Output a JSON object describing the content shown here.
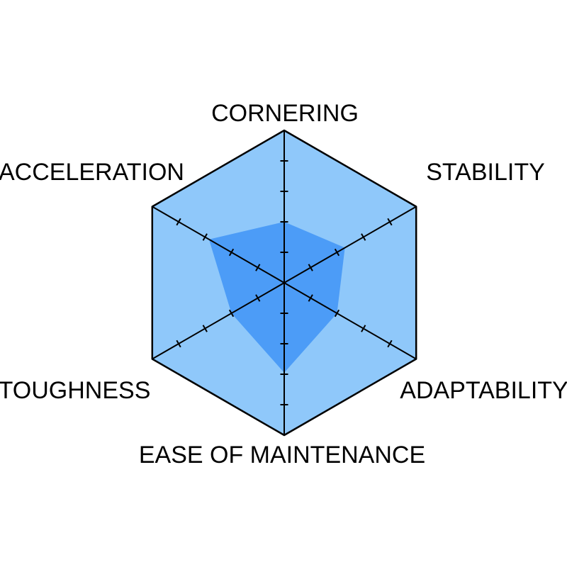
{
  "chart_data": {
    "type": "radar",
    "title": "",
    "axes": [
      {
        "label": "CORNERING",
        "value": 2.0
      },
      {
        "label": "STABILITY",
        "value": 2.3
      },
      {
        "label": "ADAPTABILITY",
        "value": 2.0
      },
      {
        "label": "EASE OF MAINTENANCE",
        "value": 2.95
      },
      {
        "label": "TOUGHNESS",
        "value": 2.0
      },
      {
        "label": "ACCELERATION",
        "value": 2.85
      }
    ],
    "scale_max": 5,
    "tick_step": 1,
    "grid": "ticks-on-spokes-only",
    "legend": "none",
    "colors": {
      "outer_hexagon_fill": "#8FC8FA",
      "data_polygon_fill": "#4C9CF7",
      "axis_stroke": "#000000",
      "label_color": "#000000",
      "page_background": "#FFFFFF"
    }
  }
}
